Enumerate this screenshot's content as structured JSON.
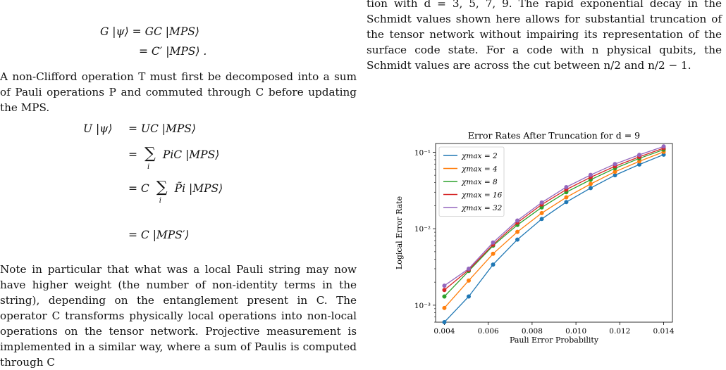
{
  "left_column": {
    "eq1_line1": "G |ψ⟩ = GC |MPS⟩",
    "eq1_line2": "= C′ |MPS⟩ .",
    "para1": "A non-Clifford operation T must first be decomposed into a sum of Pauli operations P and commuted through C before updating the MPS.",
    "eq2_line1_lhs": "U |ψ⟩",
    "eq2_line1_rhs": "= UC |MPS⟩",
    "eq2_line2_rhs": "P",
    "eq2_line2_rest": "iC |MPS⟩",
    "eq2_line3_pre": "= C",
    "eq2_line3_rest": "P̃i |MPS⟩",
    "eq2_line4": "= C |MPS′⟩",
    "sum_sign": "∑",
    "sum_index": "i",
    "eq_sign": "=",
    "para2": "Note in particular that what was a local Pauli string may now have higher weight (the number of non-identity terms in the string), depending on the entanglement present in C. The operator C transforms physically local operations into non-local operations on the tensor network. Projective measurement is implemented in a similar way, where a sum of Paulis is computed through C"
  },
  "right_column": {
    "para": "tion with d = 3, 5, 7, 9. The rapid exponential decay in the Schmidt values shown here allows for substantial truncation of the tensor network without impairing its representation of the surface code state. For a code with n physical qubits, the Schmidt values are across the cut between n/2 and n/2 − 1."
  },
  "chart_data": {
    "type": "line",
    "title": "Error Rates After Truncation for d = 9",
    "xlabel": "Pauli Error Probability",
    "ylabel": "Logical Error Rate",
    "y_scale": "log",
    "xlim": [
      0.0036,
      0.0144
    ],
    "ylim": [
      0.0006,
      0.13
    ],
    "x_ticks": [
      0.004,
      0.006,
      0.008,
      0.01,
      0.012,
      0.014
    ],
    "x_tick_labels": [
      "0.004",
      "0.006",
      "0.008",
      "0.010",
      "0.012",
      "0.014"
    ],
    "y_ticks": [
      0.001,
      0.01,
      0.1
    ],
    "y_tick_labels": [
      "10⁻³",
      "10⁻²",
      "10⁻¹"
    ],
    "x": [
      0.004,
      0.00511,
      0.00622,
      0.00733,
      0.00844,
      0.00956,
      0.01067,
      0.01178,
      0.01289,
      0.014
    ],
    "legend_position": "top-left",
    "grid": false,
    "series": [
      {
        "name": "χmax = 2",
        "color": "#1f77b4",
        "values": [
          0.0006,
          0.0013,
          0.0034,
          0.0072,
          0.0134,
          0.0223,
          0.034,
          0.05,
          0.069,
          0.093
        ]
      },
      {
        "name": "χmax = 4",
        "color": "#ff7f0e",
        "values": [
          0.00092,
          0.0021,
          0.0047,
          0.0091,
          0.016,
          0.0257,
          0.0385,
          0.0555,
          0.076,
          0.101
        ]
      },
      {
        "name": "χmax = 8",
        "color": "#2ca02c",
        "values": [
          0.0013,
          0.0028,
          0.006,
          0.0112,
          0.019,
          0.03,
          0.0437,
          0.0615,
          0.083,
          0.108
        ]
      },
      {
        "name": "χmax = 16",
        "color": "#d62728",
        "values": [
          0.00158,
          0.0029,
          0.0062,
          0.012,
          0.0207,
          0.0325,
          0.047,
          0.0655,
          0.087,
          0.113
        ]
      },
      {
        "name": "χmax = 32",
        "color": "#9467bd",
        "values": [
          0.0018,
          0.003,
          0.0066,
          0.0128,
          0.022,
          0.035,
          0.0505,
          0.07,
          0.0925,
          0.119
        ]
      }
    ]
  }
}
